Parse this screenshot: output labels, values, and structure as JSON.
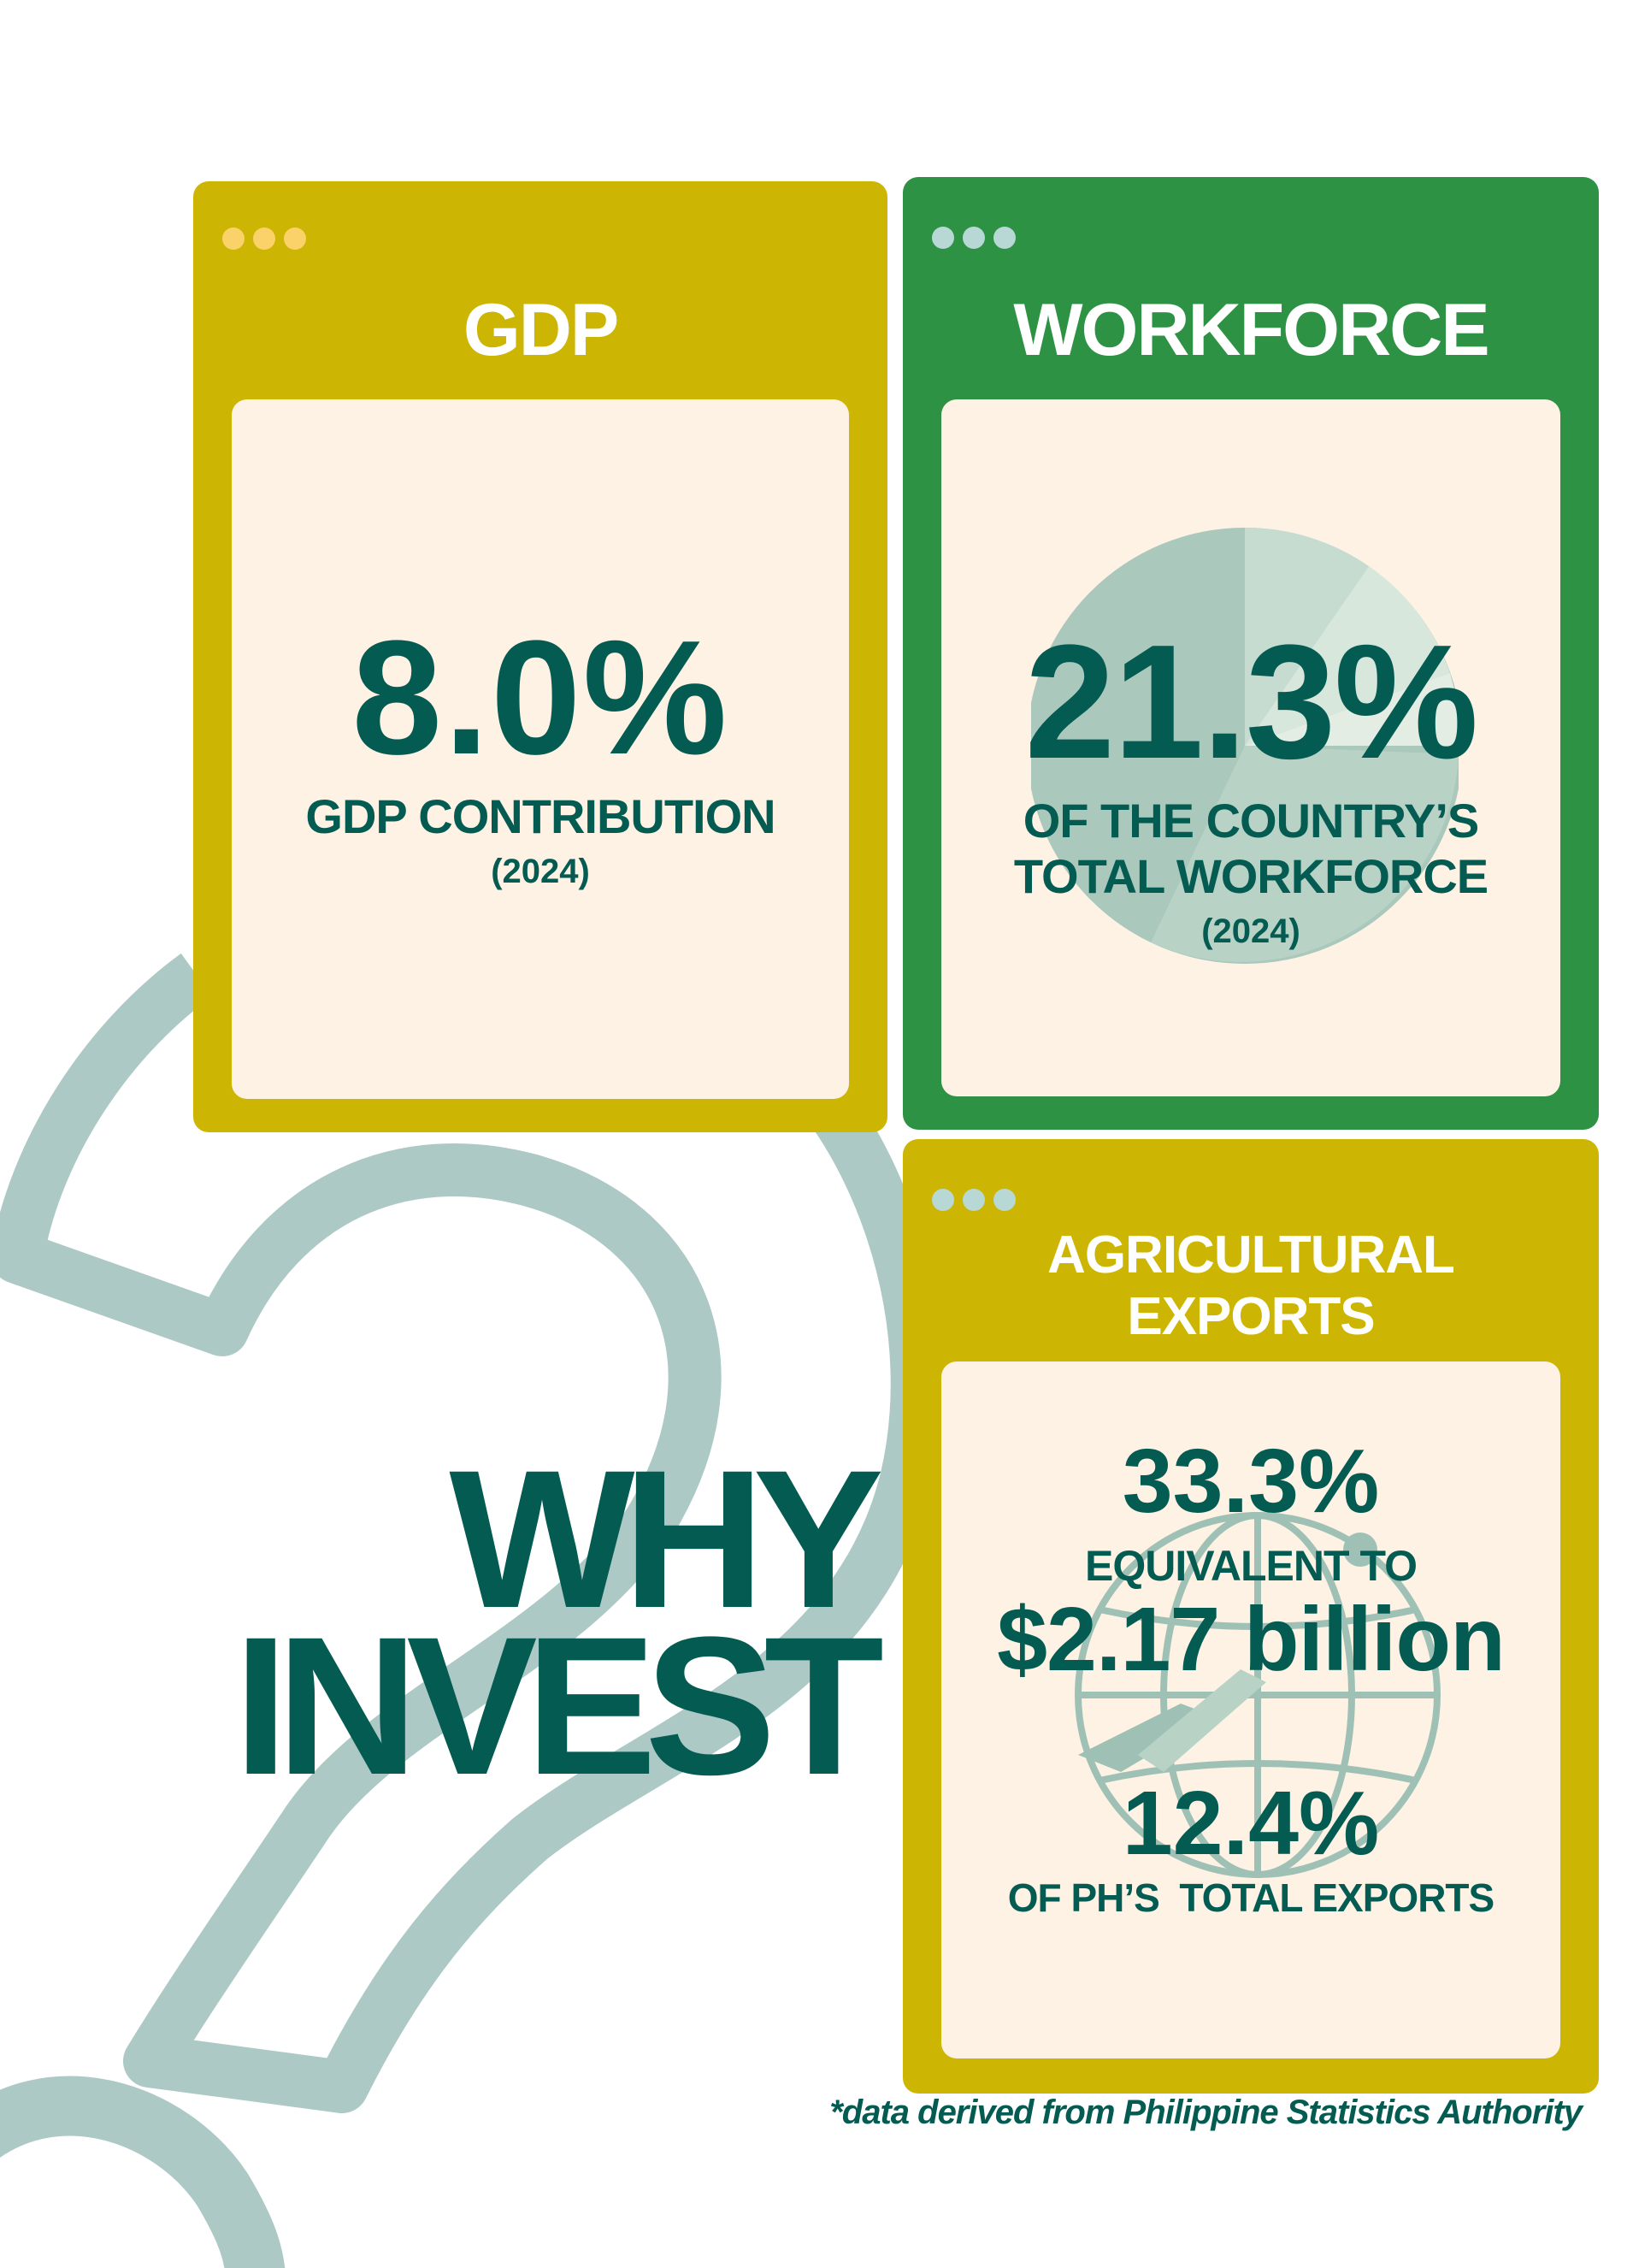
{
  "colors": {
    "gold": "#cdb503",
    "green": "#2e9245",
    "cream": "#fdf2e4",
    "dark_teal": "#045b52",
    "sage": "#acc9c5"
  },
  "cards": {
    "gdp": {
      "title": "GDP",
      "value": "8.0%",
      "label": "GDP CONTRIBUTION",
      "year": "(2024)"
    },
    "workforce": {
      "title": "WORKFORCE",
      "value": "21.3%",
      "label_line1": "OF THE COUNTRY’S",
      "label_line2": "TOTAL WORKFORCE",
      "year": "(2024)"
    },
    "exports": {
      "title_line1": "AGRICULTURAL",
      "title_line2": "EXPORTS",
      "value1": "33.3%",
      "label1": "EQUIVALENT TO",
      "amount": "$2.17 billion",
      "value2": "12.4%",
      "label2": "OF PH’S  TOTAL EXPORTS"
    }
  },
  "headline": {
    "line1": "WHY",
    "line2": "INVEST"
  },
  "source_note": "*data derived from Philippine Statistics Authority",
  "icons": [
    "window-dots-icon",
    "pie-chart-icon",
    "globe-airplane-icon",
    "question-mark-decoration"
  ]
}
